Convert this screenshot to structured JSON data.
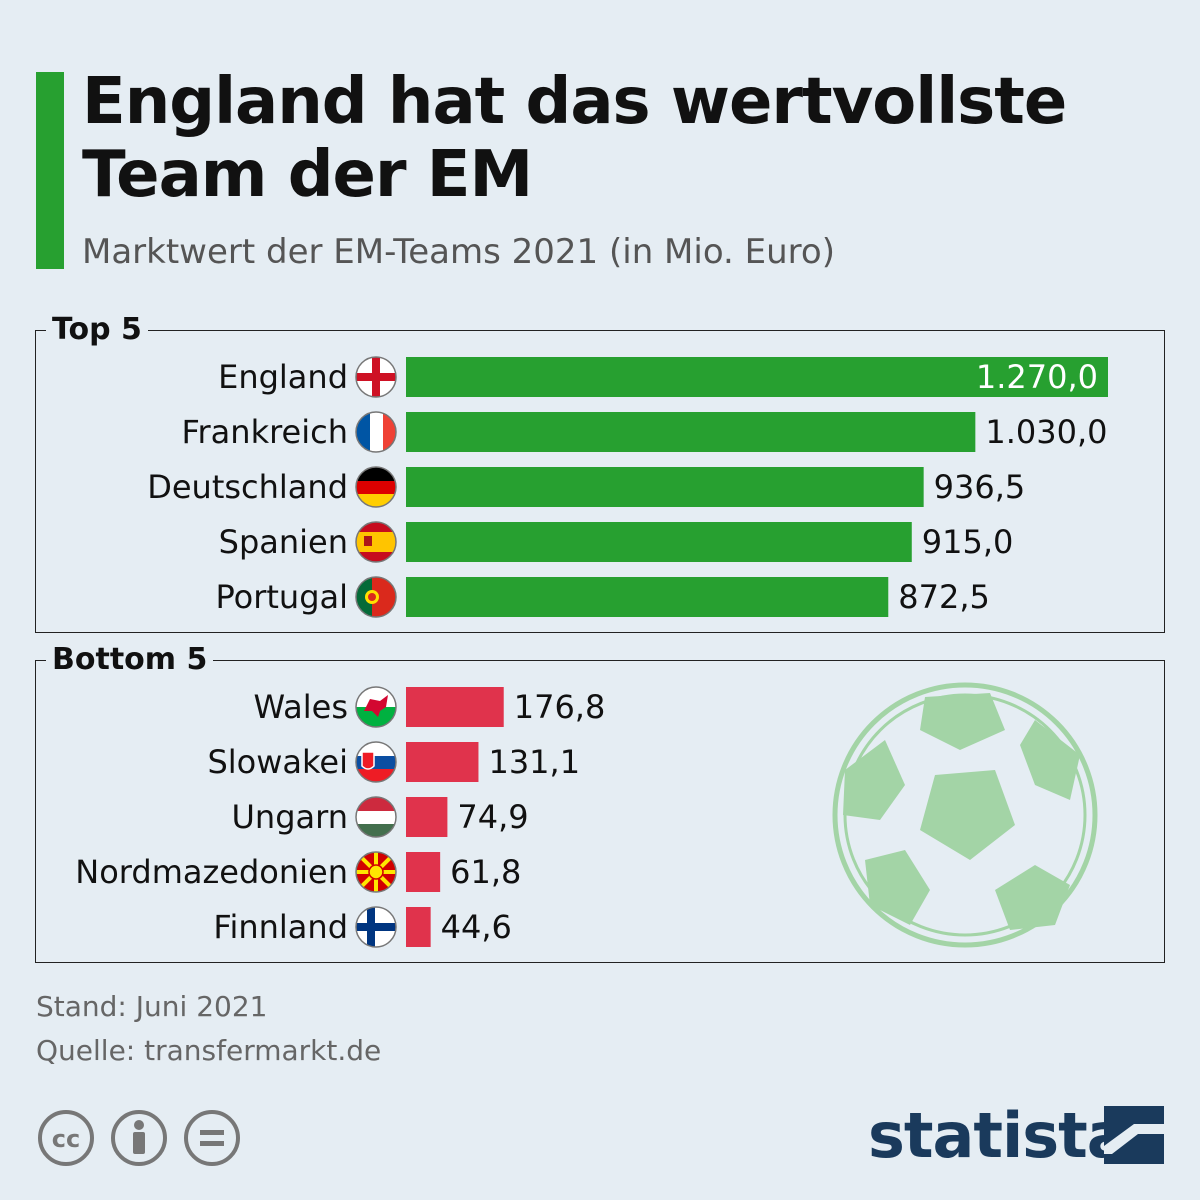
{
  "header": {
    "title": "England hat das wertvollste Team der EM",
    "subtitle": "Marktwert der EM-Teams 2021 (in Mio. Euro)"
  },
  "footer": {
    "stand": "Stand: Juni 2021",
    "quelle": "Quelle: transfermarkt.de",
    "brand": "statista",
    "license_icons": [
      "cc-icon",
      "attribution-icon",
      "no-derivatives-icon"
    ]
  },
  "colors": {
    "accent": "#27a030",
    "top_bar": "#27a030",
    "bottom_bar": "#e0334c",
    "background": "#e5edf3",
    "brand": "#1a3a5c",
    "ball": "#a3d4a6"
  },
  "chart_data": [
    {
      "type": "bar",
      "orientation": "horizontal",
      "panel_label": "Top 5",
      "categories": [
        "England",
        "Frankreich",
        "Deutschland",
        "Spanien",
        "Portugal"
      ],
      "values": [
        1270.0,
        1030.0,
        936.5,
        915.0,
        872.5
      ],
      "value_labels": [
        "1.270,0",
        "1.030,0",
        "936,5",
        "915,0",
        "872,5"
      ],
      "flags": [
        "england-flag-icon",
        "france-flag-icon",
        "germany-flag-icon",
        "spain-flag-icon",
        "portugal-flag-icon"
      ],
      "xlim": [
        0,
        1270
      ]
    },
    {
      "type": "bar",
      "orientation": "horizontal",
      "panel_label": "Bottom 5",
      "categories": [
        "Wales",
        "Slowakei",
        "Ungarn",
        "Nordmazedonien",
        "Finnland"
      ],
      "values": [
        176.8,
        131.1,
        74.9,
        61.8,
        44.6
      ],
      "value_labels": [
        "176,8",
        "131,1",
        "74,9",
        "61,8",
        "44,6"
      ],
      "flags": [
        "wales-flag-icon",
        "slovakia-flag-icon",
        "hungary-flag-icon",
        "north-macedonia-flag-icon",
        "finland-flag-icon"
      ],
      "xlim": [
        0,
        1270
      ]
    }
  ]
}
